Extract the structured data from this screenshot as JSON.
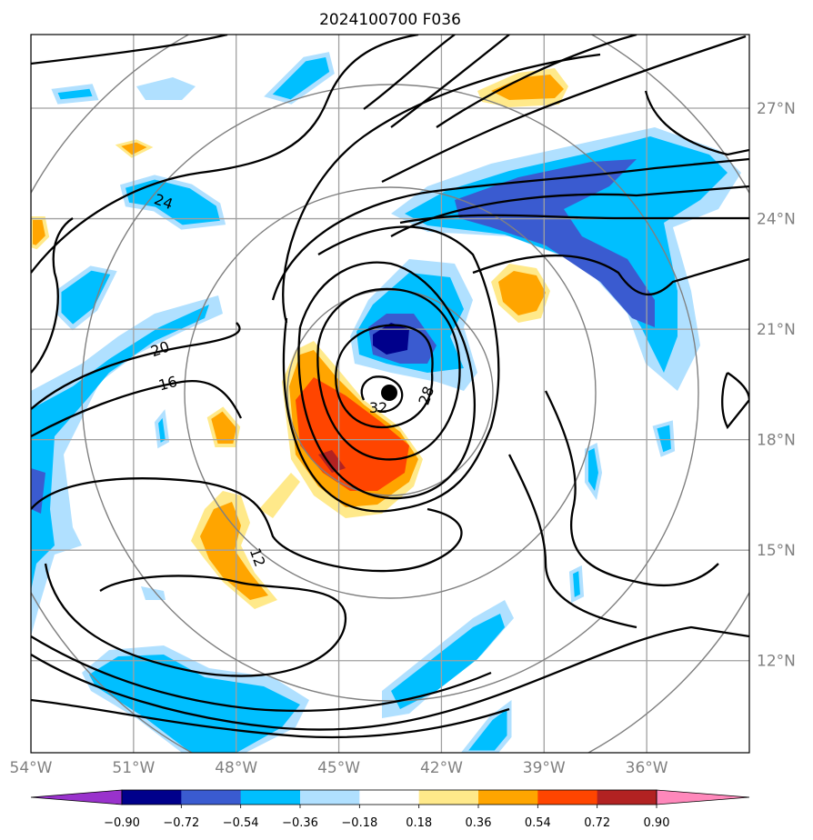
{
  "chart_data": {
    "type": "contour_map",
    "title": "2024100700 F036",
    "projection_extent": {
      "lon": [
        -54,
        -33
      ],
      "lat": [
        9.5,
        29
      ]
    },
    "x_ticks": [
      "54°W",
      "51°W",
      "48°W",
      "45°W",
      "42°W",
      "39°W",
      "36°W"
    ],
    "x_tick_values": [
      -54,
      -51,
      -48,
      -45,
      -42,
      -39,
      -36
    ],
    "y_ticks": [
      "12°N",
      "15°N",
      "18°N",
      "21°N",
      "24°N",
      "27°N"
    ],
    "y_tick_values": [
      12,
      15,
      18,
      21,
      24,
      27
    ],
    "grid": true,
    "center": {
      "lon": -44.0,
      "lat": 19.0,
      "marker": "black-dot"
    },
    "range_rings": {
      "count": 4,
      "color": "#808080"
    },
    "contour_lines": {
      "color": "#000000",
      "labels": [
        "12",
        "16",
        "20",
        "24",
        "28",
        "32"
      ]
    },
    "colorbar": {
      "orientation": "horizontal",
      "extend": "both",
      "levels": [
        "−0.90",
        "−0.72",
        "−0.54",
        "−0.36",
        "−0.18",
        "0.18",
        "0.36",
        "0.54",
        "0.72",
        "0.90"
      ],
      "colors": [
        "#9932cc",
        "#00008b",
        "#3a5bd0",
        "#00bfff",
        "#b0e0ff",
        "#ffffff",
        "#ffe98a",
        "#ffa500",
        "#ff4500",
        "#b22222",
        "#ff88bb"
      ]
    }
  }
}
